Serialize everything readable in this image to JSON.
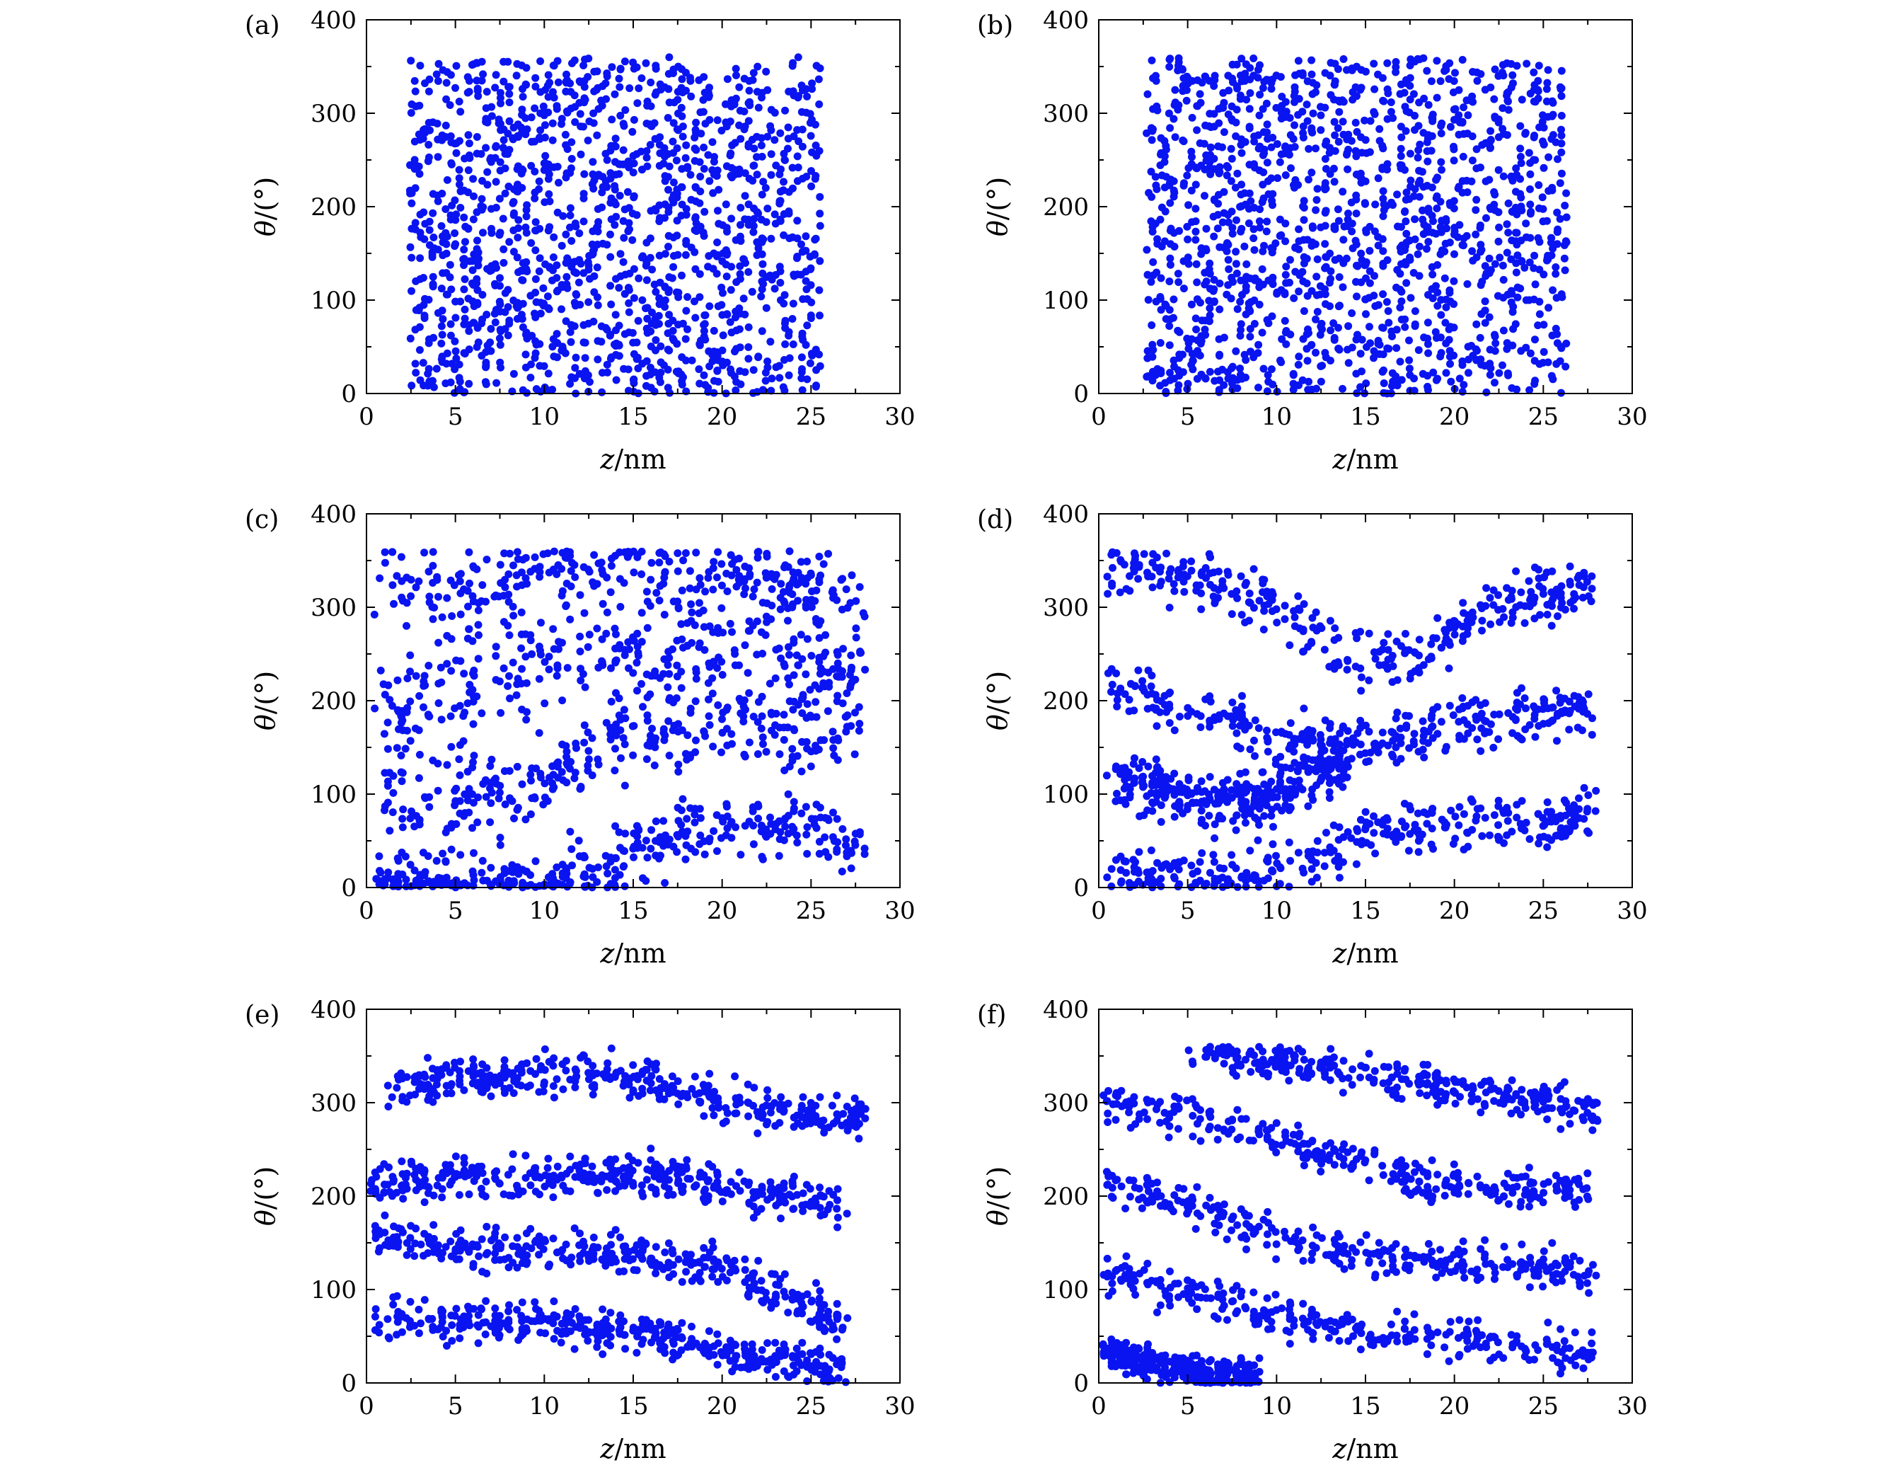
{
  "figure": {
    "panel_labels": [
      "(a)",
      "(b)",
      "(c)",
      "(d)",
      "(e)",
      "(f)"
    ],
    "x_axis_label_italic": "z",
    "x_axis_label_unit": "/nm",
    "y_axis_label_italic": "θ",
    "y_axis_label_unit": "/(°)",
    "point_color": "#0a14f0"
  },
  "chart_data": [
    {
      "panel": "(a)",
      "type": "scatter",
      "xlabel": "z/nm",
      "ylabel": "θ/(°)",
      "xlim": [
        0,
        30
      ],
      "ylim": [
        0,
        400
      ],
      "xticks": [
        0,
        5,
        10,
        15,
        20,
        25,
        30
      ],
      "yticks": [
        0,
        100,
        200,
        300,
        400
      ],
      "pattern": "uniform",
      "x_range": [
        2.5,
        25.5
      ],
      "y_range": [
        0,
        360
      ],
      "approx_points": 1500
    },
    {
      "panel": "(b)",
      "type": "scatter",
      "xlabel": "z/nm",
      "ylabel": "θ/(°)",
      "xlim": [
        0,
        30
      ],
      "ylim": [
        0,
        400
      ],
      "xticks": [
        0,
        5,
        10,
        15,
        20,
        25,
        30
      ],
      "yticks": [
        0,
        100,
        200,
        300,
        400
      ],
      "pattern": "uniform",
      "x_range": [
        2.8,
        26.3
      ],
      "y_range": [
        0,
        360
      ],
      "approx_points": 1500
    },
    {
      "panel": "(c)",
      "type": "scatter",
      "xlabel": "z/nm",
      "ylabel": "θ/(°)",
      "xlim": [
        0,
        30
      ],
      "ylim": [
        0,
        400
      ],
      "xticks": [
        0,
        5,
        10,
        15,
        20,
        25,
        30
      ],
      "yticks": [
        0,
        100,
        200,
        300,
        400
      ],
      "pattern": "banded",
      "x_range": [
        0.5,
        28
      ],
      "bands": [
        {
          "z": [
            0,
            5,
            10,
            15,
            20,
            25,
            28
          ],
          "theta": [
            330,
            320,
            340,
            345,
            330,
            320,
            320
          ],
          "spread": 35
        },
        {
          "z": [
            0,
            5,
            10,
            15,
            20,
            25,
            28
          ],
          "theta": [
            180,
            220,
            240,
            260,
            250,
            240,
            230
          ],
          "spread": 45
        },
        {
          "z": [
            0,
            5,
            10,
            15,
            20,
            25,
            28
          ],
          "theta": [
            110,
            100,
            110,
            160,
            175,
            170,
            180
          ],
          "spread": 35
        },
        {
          "z": [
            0,
            5,
            10,
            15,
            20,
            25,
            28
          ],
          "theta": [
            5,
            5,
            5,
            35,
            70,
            60,
            40
          ],
          "spread": 30
        }
      ],
      "approx_points": 1300
    },
    {
      "panel": "(d)",
      "type": "scatter",
      "xlabel": "z/nm",
      "ylabel": "θ/(°)",
      "xlim": [
        0,
        30
      ],
      "ylim": [
        0,
        400
      ],
      "xticks": [
        0,
        5,
        10,
        15,
        20,
        25,
        30
      ],
      "yticks": [
        0,
        100,
        200,
        300,
        400
      ],
      "pattern": "banded",
      "x_range": [
        0.5,
        28
      ],
      "bands": [
        {
          "z": [
            0,
            5,
            10,
            14,
            18,
            22,
            28
          ],
          "theta": [
            340,
            335,
            300,
            240,
            250,
            300,
            320
          ],
          "spread": 25
        },
        {
          "z": [
            0,
            5,
            10,
            15,
            20,
            25,
            28
          ],
          "theta": [
            220,
            190,
            160,
            150,
            170,
            185,
            195
          ],
          "spread": 22
        },
        {
          "z": [
            0,
            3,
            6,
            10,
            14
          ],
          "theta": [
            120,
            110,
            90,
            100,
            140
          ],
          "spread": 25
        },
        {
          "z": [
            0,
            5,
            10,
            15,
            20,
            25,
            28
          ],
          "theta": [
            15,
            10,
            15,
            55,
            70,
            65,
            80
          ],
          "spread": 22
        }
      ],
      "approx_points": 1300
    },
    {
      "panel": "(e)",
      "type": "scatter",
      "xlabel": "z/nm",
      "ylabel": "θ/(°)",
      "xlim": [
        0,
        30
      ],
      "ylim": [
        0,
        400
      ],
      "xticks": [
        0,
        5,
        10,
        15,
        20,
        25,
        30
      ],
      "yticks": [
        0,
        100,
        200,
        300,
        400
      ],
      "pattern": "banded",
      "x_range": [
        0.3,
        28
      ],
      "bands": [
        {
          "z": [
            1,
            5,
            10,
            14,
            18,
            22,
            28
          ],
          "theta": [
            320,
            325,
            330,
            330,
            310,
            295,
            280
          ],
          "spread": 18
        },
        {
          "z": [
            0,
            5,
            10,
            15,
            20,
            25,
            27
          ],
          "theta": [
            215,
            220,
            220,
            225,
            210,
            195,
            190
          ],
          "spread": 18
        },
        {
          "z": [
            0,
            5,
            10,
            15,
            20,
            24,
            27
          ],
          "theta": [
            165,
            145,
            140,
            140,
            120,
            90,
            60
          ],
          "spread": 18
        },
        {
          "z": [
            0,
            5,
            10,
            15,
            20,
            24,
            27
          ],
          "theta": [
            70,
            65,
            65,
            55,
            35,
            20,
            10
          ],
          "spread": 18
        }
      ],
      "approx_points": 1500
    },
    {
      "panel": "(f)",
      "type": "scatter",
      "xlabel": "z/nm",
      "ylabel": "θ/(°)",
      "xlim": [
        0,
        30
      ],
      "ylim": [
        0,
        400
      ],
      "xticks": [
        0,
        5,
        10,
        15,
        20,
        25,
        30
      ],
      "yticks": [
        0,
        100,
        200,
        300,
        400
      ],
      "pattern": "banded",
      "x_range": [
        0.3,
        28.5
      ],
      "bands": [
        {
          "z": [
            5,
            10,
            15,
            20,
            25,
            28
          ],
          "theta": [
            355,
            345,
            330,
            315,
            300,
            290
          ],
          "spread": 16
        },
        {
          "z": [
            0,
            5,
            10,
            15,
            20,
            25,
            28
          ],
          "theta": [
            300,
            285,
            260,
            235,
            210,
            205,
            205
          ],
          "spread": 18
        },
        {
          "z": [
            0,
            5,
            10,
            15,
            20,
            25,
            28
          ],
          "theta": [
            210,
            190,
            155,
            140,
            130,
            125,
            115
          ],
          "spread": 18
        },
        {
          "z": [
            0,
            5,
            10,
            15,
            20,
            25,
            28
          ],
          "theta": [
            120,
            95,
            70,
            55,
            50,
            40,
            35
          ],
          "spread": 18
        },
        {
          "z": [
            0,
            3,
            6,
            9
          ],
          "theta": [
            35,
            20,
            10,
            5
          ],
          "spread": 14
        }
      ],
      "approx_points": 1500
    }
  ]
}
